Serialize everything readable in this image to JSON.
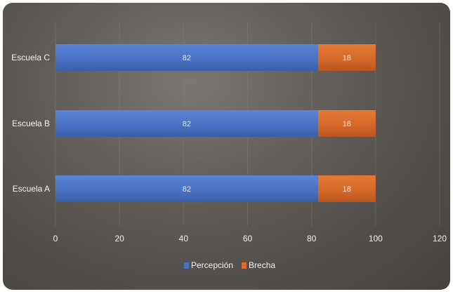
{
  "chart_data": {
    "type": "bar",
    "orientation": "horizontal",
    "stacked": true,
    "categories": [
      "Escuela A",
      "Escuela B",
      "Escuela C"
    ],
    "series": [
      {
        "name": "Percepción",
        "values": [
          82,
          82,
          82
        ],
        "color": "#4a72c4"
      },
      {
        "name": "Brecha",
        "values": [
          18,
          18,
          18
        ],
        "color": "#dc6e2a"
      }
    ],
    "xlim": [
      0,
      120
    ],
    "xticks": [
      0,
      20,
      40,
      60,
      80,
      100,
      120
    ],
    "data_labels": true,
    "grid": "vertical",
    "legend_position": "bottom"
  }
}
